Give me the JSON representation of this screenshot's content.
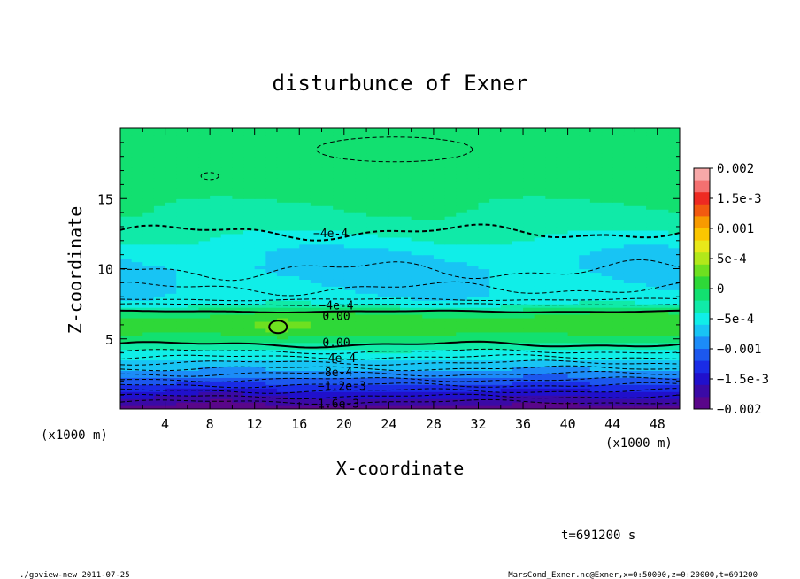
{
  "chart_data": {
    "type": "heatmap",
    "title": "disturbunce of Exner",
    "xlabel": "X-coordinate",
    "ylabel": "Z-coordinate",
    "x_unit_label": "(x1000 m)",
    "y_unit_label": "(x1000 m)",
    "xlim": [
      0,
      50
    ],
    "ylim": [
      0,
      20
    ],
    "x_ticks": [
      "4",
      "8",
      "12",
      "16",
      "20",
      "24",
      "28",
      "32",
      "36",
      "40",
      "44",
      "48"
    ],
    "x_tick_values": [
      4,
      8,
      12,
      16,
      20,
      24,
      28,
      32,
      36,
      40,
      44,
      48
    ],
    "y_ticks": [
      "5",
      "10",
      "15"
    ],
    "y_tick_values": [
      5,
      10,
      15
    ],
    "grid": false,
    "legend_position": "right",
    "colorbar": {
      "range": [
        -0.002,
        0.002
      ],
      "labels": [
        "0.002",
        "1.5e-3",
        "0.001",
        "5e-4",
        "0",
        "−5e-4",
        "−0.001",
        "−1.5e-3",
        "−0.002"
      ],
      "label_values": [
        0.002,
        0.0015,
        0.001,
        0.0005,
        0,
        -0.0005,
        -0.001,
        -0.0015,
        -0.002
      ],
      "colors_top_to_bottom": [
        "#f7a8a8",
        "#f47070",
        "#ee2a22",
        "#f25a10",
        "#f79a00",
        "#fbc600",
        "#e8e81a",
        "#b2e81a",
        "#6ee020",
        "#2ed838",
        "#12e070",
        "#10eaa8",
        "#10eee8",
        "#18c4f4",
        "#1c8cf8",
        "#1c58ee",
        "#1a2ce6",
        "#2010cc",
        "#3a0aa6",
        "#5a068a"
      ]
    },
    "contour_labels": [
      "−4e-4",
      "−4e-4",
      "0.00",
      "0.00",
      "−4e-4",
      "−8e-4",
      "−1.2e-3",
      "−1.6e-3"
    ],
    "profile_z": [
      0,
      0.5,
      1,
      1.5,
      2,
      2.5,
      3,
      3.5,
      4,
      4.5,
      5,
      5.5,
      6,
      6.5,
      7,
      7.5,
      8,
      9,
      10,
      11,
      12,
      13,
      14,
      15,
      16,
      17,
      18,
      19,
      20
    ],
    "profile_value": [
      -0.00185,
      -0.0017,
      -0.0015,
      -0.0013,
      -0.0011,
      -0.0009,
      -0.00075,
      -0.0006,
      -0.00045,
      -0.0003,
      -0.00012,
      6e-05,
      0.00012,
      6e-05,
      -8e-05,
      -0.00045,
      -0.00055,
      -0.00062,
      -0.00068,
      -0.0006,
      -0.00045,
      -0.0003,
      -0.00022,
      -0.00018,
      -0.00016,
      -0.00015,
      -0.00013,
      -0.00011,
      -0.00015
    ],
    "time_label": "t=691200 s"
  },
  "footer": {
    "left": "./gpview-new   2011-07-25",
    "right": "MarsCond_Exner.nc@Exner,x=0:50000,z=0:20000,t=691200"
  }
}
